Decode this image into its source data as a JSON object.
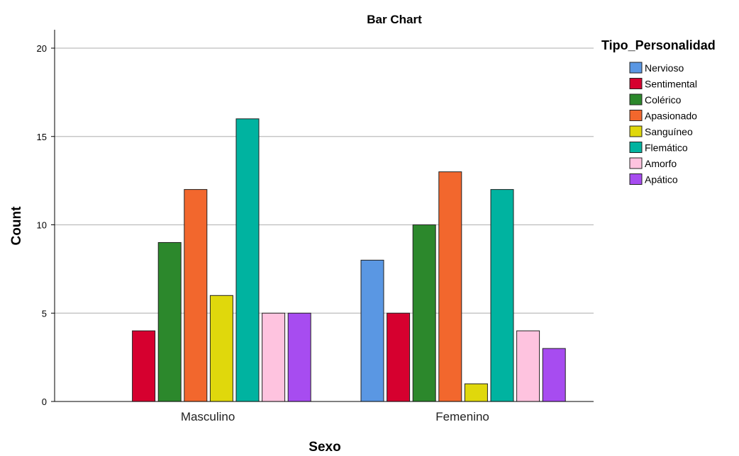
{
  "chart_data": {
    "type": "bar",
    "title": "Bar Chart",
    "xlabel": "Sexo",
    "ylabel": "Count",
    "ylim": [
      0,
      21
    ],
    "yticks": [
      0,
      5,
      10,
      15,
      20
    ],
    "grid": true,
    "legend_title": "Tipo_Personalidad",
    "legend_position": "right",
    "categories": [
      "Masculino",
      "Femenino"
    ],
    "series": [
      {
        "name": "Nervioso",
        "color": "#5A97E3",
        "values": [
          0,
          8
        ]
      },
      {
        "name": "Sentimental",
        "color": "#D6002F",
        "values": [
          4,
          5
        ]
      },
      {
        "name": "Colérico",
        "color": "#2C882C",
        "values": [
          9,
          10
        ]
      },
      {
        "name": "Apasionado",
        "color": "#F2672D",
        "values": [
          12,
          13
        ]
      },
      {
        "name": "Sanguíneo",
        "color": "#E0D80C",
        "values": [
          6,
          1
        ]
      },
      {
        "name": "Flemático",
        "color": "#00B3A0",
        "values": [
          16,
          12
        ]
      },
      {
        "name": "Amorfo",
        "color": "#FEC3DF",
        "values": [
          5,
          4
        ]
      },
      {
        "name": "Apático",
        "color": "#A74CF0",
        "values": [
          5,
          3
        ]
      }
    ]
  }
}
